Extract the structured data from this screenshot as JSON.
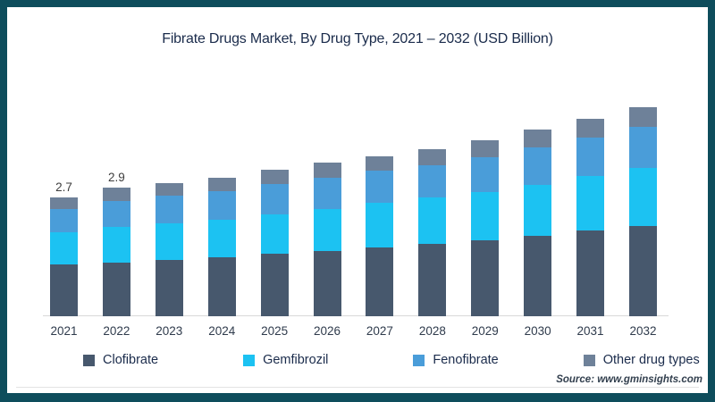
{
  "frame": {
    "border_color": "#0e4d5c",
    "background": "#ffffff"
  },
  "chart_data": {
    "type": "bar",
    "stacked": true,
    "title": "Fibrate Drugs Market, By Drug Type, 2021 – 2032 (USD Billion)",
    "unit": "USD Billion",
    "categories": [
      "2021",
      "2022",
      "2023",
      "2024",
      "2025",
      "2026",
      "2027",
      "2028",
      "2029",
      "2030",
      "2031",
      "2032"
    ],
    "series": [
      {
        "name": "Clofibrate",
        "color": "#47586d",
        "values": [
          1.17,
          1.21,
          1.28,
          1.34,
          1.41,
          1.48,
          1.55,
          1.63,
          1.71,
          1.82,
          1.93,
          2.04
        ]
      },
      {
        "name": "Gemfibrozil",
        "color": "#1cc2f2",
        "values": [
          0.73,
          0.8,
          0.82,
          0.85,
          0.89,
          0.94,
          1.0,
          1.06,
          1.1,
          1.16,
          1.23,
          1.31
        ]
      },
      {
        "name": "Fenofibrate",
        "color": "#4a9dd9",
        "values": [
          0.53,
          0.58,
          0.63,
          0.64,
          0.68,
          0.7,
          0.72,
          0.73,
          0.79,
          0.84,
          0.87,
          0.93
        ]
      },
      {
        "name": "Other drug types",
        "color": "#6e8199",
        "values": [
          0.27,
          0.31,
          0.29,
          0.3,
          0.33,
          0.34,
          0.32,
          0.36,
          0.38,
          0.4,
          0.42,
          0.44
        ]
      }
    ],
    "totals": [
      2.7,
      2.9,
      3.02,
      3.13,
      3.31,
      3.46,
      3.59,
      3.78,
      3.98,
      4.22,
      4.45,
      4.72
    ],
    "total_labels": [
      "2.7",
      "2.9",
      "",
      "",
      "",
      "",
      "",
      "",
      "",
      "",
      "",
      ""
    ],
    "ylim": [
      0,
      5
    ],
    "grid": false,
    "legend_position": "bottom",
    "axis_line_color": "#d9d9d9"
  },
  "source": {
    "label": "Source: www.gminsights.com"
  }
}
